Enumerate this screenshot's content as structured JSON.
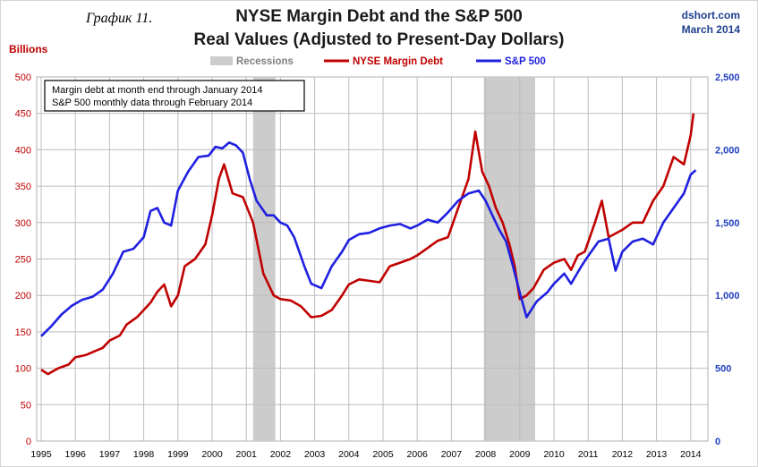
{
  "caption": "График 11.",
  "source": "dshort.com",
  "date": "March 2014",
  "chart_data": {
    "type": "line",
    "title": "NYSE Margin Debt and the S&P 500",
    "subtitle": "Real Values (Adjusted to Present-Day Dollars)",
    "ylabel": "Billions",
    "ylim": [
      0,
      500
    ],
    "y2lim": [
      0,
      2500
    ],
    "xlim": [
      1995.0,
      2014.5
    ],
    "yticks": [
      "0",
      "50",
      "100",
      "150",
      "200",
      "250",
      "300",
      "350",
      "400",
      "450",
      "500"
    ],
    "y2ticks": [
      "0",
      "500",
      "1,000",
      "1,500",
      "2,000",
      "2,500"
    ],
    "xticks": [
      "1995",
      "1996",
      "1997",
      "1998",
      "1999",
      "2000",
      "2001",
      "2002",
      "2003",
      "2004",
      "2005",
      "2006",
      "2007",
      "2008",
      "2009",
      "2010",
      "2011",
      "2012",
      "2013",
      "2014"
    ],
    "grid": true,
    "legend": [
      "Recessions",
      "NYSE Margin Debt",
      "S&P 500"
    ],
    "legend_position": "top-center",
    "annotation": [
      "Margin debt at month end through January 2014",
      "S&P 500 monthly data through February 2014"
    ],
    "recessions": [
      [
        2001.2,
        2001.85
      ],
      [
        2007.95,
        2009.45
      ]
    ],
    "colors": {
      "margin": "#c00000",
      "sp500": "#1f1fe0",
      "recession": "#cccccc",
      "left_axis": "#c00000",
      "right_axis": "#2040c0"
    },
    "series": [
      {
        "name": "NYSE Margin Debt",
        "axis": "left",
        "x": [
          1995.0,
          1995.2,
          1995.5,
          1995.8,
          1996.0,
          1996.3,
          1996.5,
          1996.8,
          1997.0,
          1997.3,
          1997.5,
          1997.8,
          1998.0,
          1998.2,
          1998.4,
          1998.6,
          1998.8,
          1999.0,
          1999.2,
          1999.5,
          1999.8,
          2000.0,
          2000.2,
          2000.35,
          2000.6,
          2000.9,
          2001.2,
          2001.5,
          2001.8,
          2002.0,
          2002.3,
          2002.6,
          2002.9,
          2003.2,
          2003.5,
          2003.8,
          2004.0,
          2004.3,
          2004.6,
          2004.9,
          2005.2,
          2005.5,
          2005.8,
          2006.0,
          2006.3,
          2006.6,
          2006.9,
          2007.2,
          2007.35,
          2007.5,
          2007.7,
          2007.9,
          2008.1,
          2008.3,
          2008.5,
          2008.7,
          2008.85,
          2009.0,
          2009.2,
          2009.4,
          2009.7,
          2010.0,
          2010.3,
          2010.5,
          2010.7,
          2010.9,
          2011.2,
          2011.4,
          2011.6,
          2011.8,
          2012.0,
          2012.3,
          2012.6,
          2012.9,
          2013.2,
          2013.5,
          2013.8,
          2014.0,
          2014.08
        ],
        "values": [
          98,
          92,
          100,
          105,
          115,
          118,
          122,
          128,
          138,
          145,
          160,
          170,
          180,
          190,
          205,
          215,
          185,
          200,
          240,
          250,
          270,
          310,
          360,
          380,
          340,
          335,
          300,
          230,
          200,
          195,
          193,
          185,
          170,
          172,
          180,
          200,
          215,
          222,
          220,
          218,
          240,
          245,
          250,
          255,
          265,
          275,
          280,
          320,
          340,
          360,
          425,
          370,
          350,
          320,
          300,
          270,
          240,
          195,
          200,
          210,
          235,
          245,
          250,
          235,
          255,
          260,
          300,
          330,
          280,
          285,
          290,
          300,
          300,
          330,
          350,
          390,
          380,
          420,
          450
        ]
      },
      {
        "name": "S&P 500",
        "axis": "right",
        "x": [
          1995.0,
          1995.3,
          1995.6,
          1995.9,
          1996.2,
          1996.5,
          1996.8,
          1997.1,
          1997.4,
          1997.7,
          1998.0,
          1998.2,
          1998.4,
          1998.6,
          1998.8,
          1999.0,
          1999.3,
          1999.6,
          1999.9,
          2000.1,
          2000.3,
          2000.5,
          2000.7,
          2000.9,
          2001.1,
          2001.3,
          2001.6,
          2001.8,
          2002.0,
          2002.2,
          2002.4,
          2002.7,
          2002.9,
          2003.2,
          2003.5,
          2003.8,
          2004.0,
          2004.3,
          2004.6,
          2004.9,
          2005.2,
          2005.5,
          2005.8,
          2006.0,
          2006.3,
          2006.6,
          2006.9,
          2007.2,
          2007.5,
          2007.8,
          2008.0,
          2008.2,
          2008.4,
          2008.6,
          2008.8,
          2009.0,
          2009.2,
          2009.5,
          2009.8,
          2010.0,
          2010.3,
          2010.5,
          2010.8,
          2011.0,
          2011.3,
          2011.6,
          2011.8,
          2012.0,
          2012.3,
          2012.6,
          2012.9,
          2013.2,
          2013.5,
          2013.8,
          2014.0,
          2014.15
        ],
        "values": [
          720,
          790,
          870,
          930,
          970,
          990,
          1040,
          1150,
          1300,
          1320,
          1400,
          1580,
          1600,
          1500,
          1480,
          1720,
          1850,
          1950,
          1960,
          2020,
          2010,
          2050,
          2030,
          1980,
          1800,
          1650,
          1550,
          1550,
          1500,
          1480,
          1400,
          1200,
          1080,
          1050,
          1200,
          1300,
          1380,
          1420,
          1430,
          1460,
          1480,
          1490,
          1460,
          1480,
          1520,
          1500,
          1570,
          1650,
          1700,
          1720,
          1650,
          1550,
          1450,
          1370,
          1200,
          1020,
          850,
          960,
          1020,
          1080,
          1150,
          1080,
          1200,
          1270,
          1370,
          1390,
          1170,
          1300,
          1370,
          1390,
          1350,
          1500,
          1600,
          1700,
          1830,
          1860
        ]
      }
    ]
  }
}
